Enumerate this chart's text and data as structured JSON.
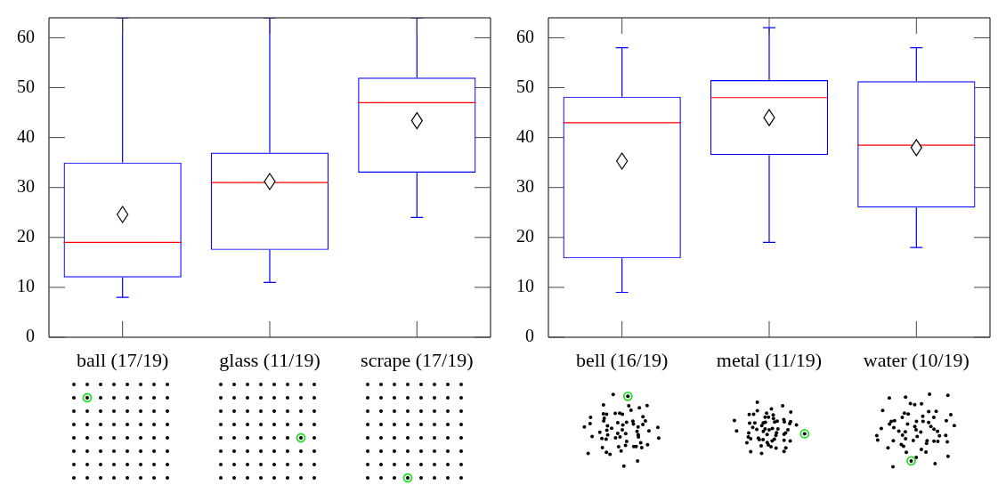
{
  "chart_data": [
    {
      "type": "box",
      "categories": [
        "ball (17/19)",
        "glass (11/19)",
        "scrape (17/19)"
      ],
      "color": "#0000ff",
      "ylim": [
        0,
        64
      ],
      "yticks": [
        0,
        10,
        20,
        30,
        40,
        50,
        60
      ],
      "boxes": [
        {
          "low": 8,
          "q1": 12,
          "median": 19,
          "q3": 35,
          "high": 64,
          "mean": 24.6
        },
        {
          "low": 11,
          "q1": 17.5,
          "median": 31,
          "q3": 37,
          "high": 64,
          "mean": 31.2
        },
        {
          "low": 24,
          "q1": 33,
          "median": 47,
          "q3": 52,
          "high": 64,
          "mean": 43.4
        }
      ]
    },
    {
      "type": "box",
      "categories": [
        "bell (16/19)",
        "metal (11/19)",
        "water (10/19)"
      ],
      "color": "#0000ff",
      "ylim": [
        0,
        64
      ],
      "yticks": [
        0,
        10,
        20,
        30,
        40,
        50,
        60
      ],
      "boxes": [
        {
          "low": 9,
          "q1": 15.8,
          "median": 43,
          "q3": 48.2,
          "high": 58,
          "mean": 35.3
        },
        {
          "low": 19,
          "q1": 36.5,
          "median": 48,
          "q3": 51.5,
          "high": 62,
          "mean": 44
        },
        {
          "low": 18,
          "q1": 26,
          "median": 38.5,
          "q3": 51.3,
          "high": 58,
          "mean": 38
        }
      ]
    }
  ]
}
